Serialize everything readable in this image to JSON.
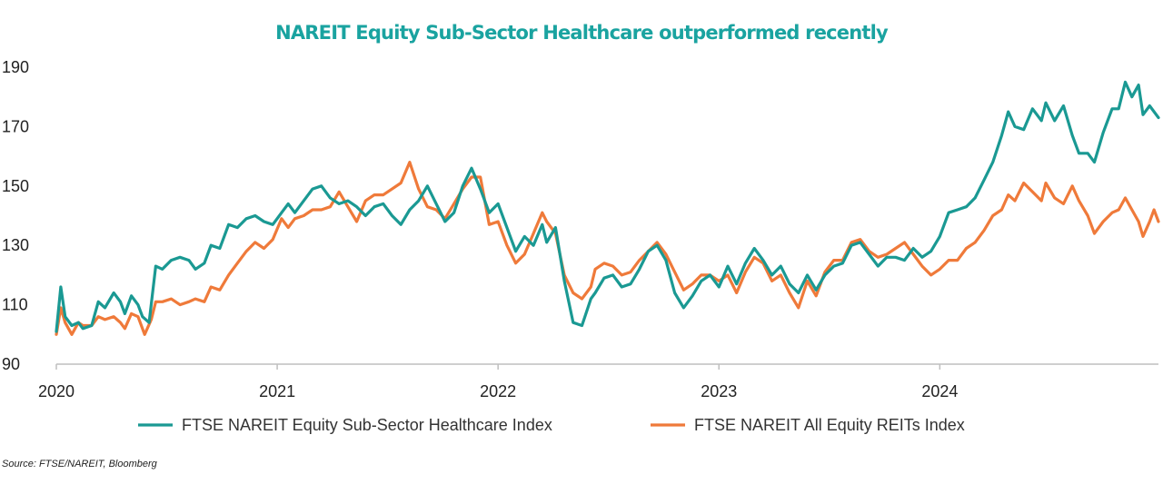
{
  "title": "NAREIT Equity Sub-Sector Healthcare outperformed recently",
  "source": "Source: FTSE/NAREIT, Bloomberg",
  "colors": {
    "title": "#1aa3a0",
    "healthcare": "#1a9993",
    "all_reits": "#ef7a3a",
    "axis": "#bfbfbf"
  },
  "chart_data": {
    "type": "line",
    "title": "NAREIT Equity Sub-Sector Healthcare outperformed recently",
    "xlabel": "",
    "ylabel": "",
    "x_ticks": [
      "2020",
      "2021",
      "2022",
      "2023",
      "2024"
    ],
    "y_ticks": [
      90,
      110,
      130,
      150,
      170,
      190
    ],
    "xlim": [
      2020.0,
      2024.99
    ],
    "ylim": [
      90,
      190
    ],
    "grid": false,
    "legend_position": "bottom",
    "series": [
      {
        "name": "FTSE NAREIT Equity Sub-Sector Healthcare Index",
        "color": "#1a9993",
        "points": [
          [
            2020.0,
            101
          ],
          [
            2020.02,
            116
          ],
          [
            2020.04,
            106
          ],
          [
            2020.07,
            103
          ],
          [
            2020.1,
            104
          ],
          [
            2020.12,
            102
          ],
          [
            2020.16,
            103
          ],
          [
            2020.19,
            111
          ],
          [
            2020.22,
            109
          ],
          [
            2020.26,
            114
          ],
          [
            2020.29,
            111
          ],
          [
            2020.31,
            107
          ],
          [
            2020.34,
            113
          ],
          [
            2020.37,
            110
          ],
          [
            2020.39,
            106
          ],
          [
            2020.42,
            104
          ],
          [
            2020.45,
            123
          ],
          [
            2020.48,
            122
          ],
          [
            2020.52,
            125
          ],
          [
            2020.56,
            126
          ],
          [
            2020.6,
            125
          ],
          [
            2020.63,
            122
          ],
          [
            2020.67,
            124
          ],
          [
            2020.7,
            130
          ],
          [
            2020.74,
            129
          ],
          [
            2020.78,
            137
          ],
          [
            2020.82,
            136
          ],
          [
            2020.86,
            139
          ],
          [
            2020.9,
            140
          ],
          [
            2020.94,
            138
          ],
          [
            2020.98,
            137
          ],
          [
            2021.02,
            141
          ],
          [
            2021.05,
            144
          ],
          [
            2021.08,
            141
          ],
          [
            2021.12,
            145
          ],
          [
            2021.16,
            149
          ],
          [
            2021.2,
            150
          ],
          [
            2021.24,
            146
          ],
          [
            2021.28,
            144
          ],
          [
            2021.32,
            145
          ],
          [
            2021.36,
            143
          ],
          [
            2021.4,
            140
          ],
          [
            2021.44,
            143
          ],
          [
            2021.48,
            144
          ],
          [
            2021.52,
            140
          ],
          [
            2021.56,
            137
          ],
          [
            2021.6,
            142
          ],
          [
            2021.64,
            145
          ],
          [
            2021.68,
            150
          ],
          [
            2021.72,
            144
          ],
          [
            2021.76,
            138
          ],
          [
            2021.8,
            141
          ],
          [
            2021.84,
            150
          ],
          [
            2021.88,
            156
          ],
          [
            2021.92,
            149
          ],
          [
            2021.96,
            141
          ],
          [
            2022.0,
            144
          ],
          [
            2022.04,
            136
          ],
          [
            2022.08,
            128
          ],
          [
            2022.12,
            133
          ],
          [
            2022.16,
            130
          ],
          [
            2022.2,
            137
          ],
          [
            2022.22,
            131
          ],
          [
            2022.26,
            136
          ],
          [
            2022.3,
            118
          ],
          [
            2022.34,
            104
          ],
          [
            2022.38,
            103
          ],
          [
            2022.42,
            112
          ],
          [
            2022.44,
            114
          ],
          [
            2022.48,
            119
          ],
          [
            2022.52,
            120
          ],
          [
            2022.56,
            116
          ],
          [
            2022.6,
            117
          ],
          [
            2022.64,
            122
          ],
          [
            2022.68,
            128
          ],
          [
            2022.72,
            130
          ],
          [
            2022.76,
            125
          ],
          [
            2022.8,
            114
          ],
          [
            2022.84,
            109
          ],
          [
            2022.88,
            113
          ],
          [
            2022.92,
            118
          ],
          [
            2022.96,
            120
          ],
          [
            2023.0,
            116
          ],
          [
            2023.04,
            123
          ],
          [
            2023.08,
            117
          ],
          [
            2023.12,
            124
          ],
          [
            2023.16,
            129
          ],
          [
            2023.2,
            125
          ],
          [
            2023.24,
            120
          ],
          [
            2023.28,
            123
          ],
          [
            2023.32,
            117
          ],
          [
            2023.36,
            114
          ],
          [
            2023.4,
            120
          ],
          [
            2023.44,
            115
          ],
          [
            2023.48,
            120
          ],
          [
            2023.52,
            123
          ],
          [
            2023.56,
            124
          ],
          [
            2023.6,
            130
          ],
          [
            2023.64,
            131
          ],
          [
            2023.68,
            127
          ],
          [
            2023.72,
            123
          ],
          [
            2023.76,
            126
          ],
          [
            2023.8,
            126
          ],
          [
            2023.84,
            125
          ],
          [
            2023.88,
            129
          ],
          [
            2023.92,
            126
          ],
          [
            2023.96,
            128
          ],
          [
            2024.0,
            133
          ],
          [
            2024.04,
            141
          ],
          [
            2024.08,
            142
          ],
          [
            2024.12,
            143
          ],
          [
            2024.16,
            146
          ],
          [
            2024.2,
            152
          ],
          [
            2024.24,
            158
          ],
          [
            2024.28,
            167
          ],
          [
            2024.31,
            175
          ],
          [
            2024.34,
            170
          ],
          [
            2024.38,
            169
          ],
          [
            2024.42,
            176
          ],
          [
            2024.46,
            172
          ],
          [
            2024.48,
            178
          ],
          [
            2024.52,
            172
          ],
          [
            2024.56,
            177
          ],
          [
            2024.6,
            167
          ],
          [
            2024.63,
            161
          ],
          [
            2024.67,
            161
          ],
          [
            2024.7,
            158
          ],
          [
            2024.74,
            168
          ],
          [
            2024.78,
            176
          ],
          [
            2024.81,
            176
          ],
          [
            2024.84,
            185
          ],
          [
            2024.87,
            180
          ],
          [
            2024.9,
            184
          ],
          [
            2024.92,
            174
          ],
          [
            2024.95,
            177
          ],
          [
            2024.99,
            173
          ]
        ]
      },
      {
        "name": "FTSE NAREIT All Equity REITs Index",
        "color": "#ef7a3a",
        "points": [
          [
            2020.0,
            100
          ],
          [
            2020.02,
            109
          ],
          [
            2020.04,
            104
          ],
          [
            2020.07,
            100
          ],
          [
            2020.1,
            104
          ],
          [
            2020.12,
            103
          ],
          [
            2020.16,
            103
          ],
          [
            2020.19,
            106
          ],
          [
            2020.22,
            105
          ],
          [
            2020.26,
            106
          ],
          [
            2020.29,
            104
          ],
          [
            2020.31,
            102
          ],
          [
            2020.34,
            107
          ],
          [
            2020.37,
            106
          ],
          [
            2020.4,
            100
          ],
          [
            2020.43,
            105
          ],
          [
            2020.45,
            111
          ],
          [
            2020.48,
            111
          ],
          [
            2020.52,
            112
          ],
          [
            2020.56,
            110
          ],
          [
            2020.6,
            111
          ],
          [
            2020.63,
            112
          ],
          [
            2020.67,
            111
          ],
          [
            2020.7,
            116
          ],
          [
            2020.74,
            115
          ],
          [
            2020.78,
            120
          ],
          [
            2020.82,
            124
          ],
          [
            2020.86,
            128
          ],
          [
            2020.9,
            131
          ],
          [
            2020.94,
            129
          ],
          [
            2020.98,
            132
          ],
          [
            2021.02,
            139
          ],
          [
            2021.05,
            136
          ],
          [
            2021.08,
            139
          ],
          [
            2021.12,
            140
          ],
          [
            2021.16,
            142
          ],
          [
            2021.2,
            142
          ],
          [
            2021.24,
            143
          ],
          [
            2021.28,
            148
          ],
          [
            2021.32,
            143
          ],
          [
            2021.36,
            138
          ],
          [
            2021.4,
            145
          ],
          [
            2021.44,
            147
          ],
          [
            2021.48,
            147
          ],
          [
            2021.52,
            149
          ],
          [
            2021.56,
            151
          ],
          [
            2021.6,
            158
          ],
          [
            2021.64,
            149
          ],
          [
            2021.68,
            143
          ],
          [
            2021.72,
            142
          ],
          [
            2021.76,
            139
          ],
          [
            2021.8,
            144
          ],
          [
            2021.84,
            149
          ],
          [
            2021.88,
            153
          ],
          [
            2021.92,
            153
          ],
          [
            2021.96,
            137
          ],
          [
            2022.0,
            138
          ],
          [
            2022.04,
            130
          ],
          [
            2022.08,
            124
          ],
          [
            2022.12,
            127
          ],
          [
            2022.16,
            134
          ],
          [
            2022.2,
            141
          ],
          [
            2022.22,
            138
          ],
          [
            2022.26,
            134
          ],
          [
            2022.3,
            120
          ],
          [
            2022.34,
            114
          ],
          [
            2022.38,
            112
          ],
          [
            2022.42,
            116
          ],
          [
            2022.44,
            122
          ],
          [
            2022.48,
            124
          ],
          [
            2022.52,
            123
          ],
          [
            2022.56,
            120
          ],
          [
            2022.6,
            121
          ],
          [
            2022.64,
            125
          ],
          [
            2022.68,
            128
          ],
          [
            2022.72,
            131
          ],
          [
            2022.76,
            127
          ],
          [
            2022.8,
            121
          ],
          [
            2022.84,
            115
          ],
          [
            2022.88,
            117
          ],
          [
            2022.92,
            120
          ],
          [
            2022.96,
            120
          ],
          [
            2023.0,
            118
          ],
          [
            2023.04,
            120
          ],
          [
            2023.08,
            114
          ],
          [
            2023.12,
            121
          ],
          [
            2023.16,
            126
          ],
          [
            2023.2,
            124
          ],
          [
            2023.24,
            118
          ],
          [
            2023.28,
            120
          ],
          [
            2023.32,
            114
          ],
          [
            2023.36,
            109
          ],
          [
            2023.4,
            118
          ],
          [
            2023.44,
            113
          ],
          [
            2023.48,
            121
          ],
          [
            2023.52,
            125
          ],
          [
            2023.56,
            125
          ],
          [
            2023.6,
            131
          ],
          [
            2023.64,
            132
          ],
          [
            2023.68,
            128
          ],
          [
            2023.72,
            126
          ],
          [
            2023.76,
            127
          ],
          [
            2023.8,
            129
          ],
          [
            2023.84,
            131
          ],
          [
            2023.88,
            127
          ],
          [
            2023.92,
            123
          ],
          [
            2023.96,
            120
          ],
          [
            2024.0,
            122
          ],
          [
            2024.04,
            125
          ],
          [
            2024.08,
            125
          ],
          [
            2024.12,
            129
          ],
          [
            2024.16,
            131
          ],
          [
            2024.2,
            135
          ],
          [
            2024.24,
            140
          ],
          [
            2024.28,
            142
          ],
          [
            2024.31,
            147
          ],
          [
            2024.34,
            145
          ],
          [
            2024.38,
            151
          ],
          [
            2024.42,
            148
          ],
          [
            2024.46,
            145
          ],
          [
            2024.48,
            151
          ],
          [
            2024.52,
            146
          ],
          [
            2024.56,
            144
          ],
          [
            2024.6,
            150
          ],
          [
            2024.63,
            145
          ],
          [
            2024.67,
            140
          ],
          [
            2024.7,
            134
          ],
          [
            2024.74,
            138
          ],
          [
            2024.78,
            141
          ],
          [
            2024.81,
            142
          ],
          [
            2024.84,
            146
          ],
          [
            2024.87,
            142
          ],
          [
            2024.9,
            138
          ],
          [
            2024.92,
            133
          ],
          [
            2024.95,
            138
          ],
          [
            2024.97,
            142
          ],
          [
            2024.99,
            138
          ]
        ]
      }
    ]
  }
}
